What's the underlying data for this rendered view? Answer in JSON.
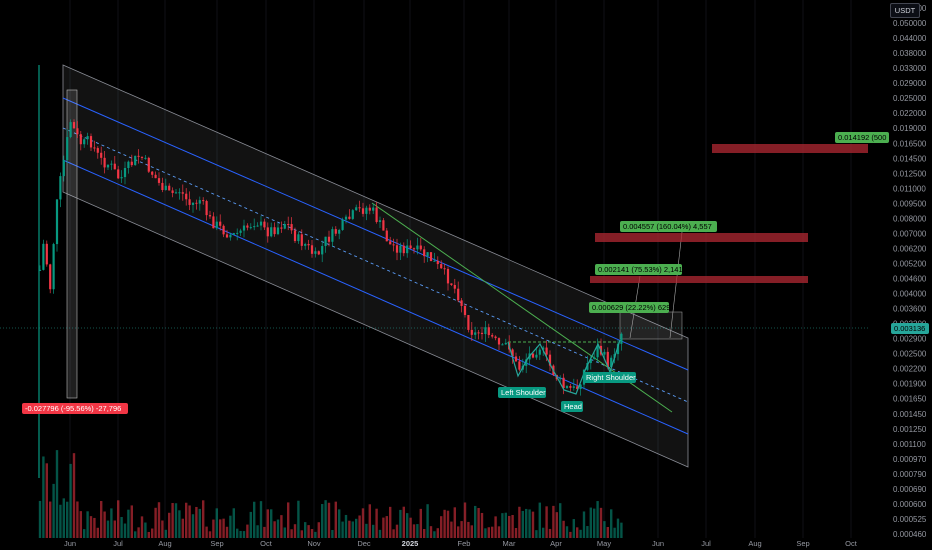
{
  "currency": "USDT",
  "price_label": "0.003136",
  "colors": {
    "up": "#089981",
    "down": "#f23645",
    "up_bright": "#26a69a",
    "channel": "#5b9cf6",
    "trend": "#4caf50",
    "target_box": "#b22833"
  },
  "chart_data": {
    "type": "candlestick",
    "x_labels": [
      "Jun",
      "Jul",
      "Aug",
      "Sep",
      "Oct",
      "Nov",
      "Dec",
      "2025",
      "Feb",
      "Mar",
      "Apr",
      "May",
      "Jun",
      "Jul",
      "Aug",
      "Sep",
      "Oct"
    ],
    "y_ticks": [
      "0.058000",
      "0.050000",
      "0.044000",
      "0.038000",
      "0.033000",
      "0.029000",
      "0.025000",
      "0.022000",
      "0.019000",
      "0.016500",
      "0.014500",
      "0.012500",
      "0.011000",
      "0.009500",
      "0.008000",
      "0.007000",
      "0.006200",
      "0.005200",
      "0.004600",
      "0.004000",
      "0.003600",
      "0.003200",
      "0.002900",
      "0.002500",
      "0.002200",
      "0.001900",
      "0.001650",
      "0.001450",
      "0.001250",
      "0.001100",
      "0.000970",
      "0.000790",
      "0.000690",
      "0.000600",
      "0.000525",
      "0.000460"
    ],
    "scale": "log",
    "current_price": 0.003136,
    "annotations": [
      {
        "text": "Left Shoulder",
        "kind": "pattern"
      },
      {
        "text": "Head",
        "kind": "pattern"
      },
      {
        "text": "Right Shoulder",
        "kind": "pattern"
      }
    ],
    "targets": [
      {
        "text": "0.000629 (22.22%) 629"
      },
      {
        "text": "0.002141 (75.53%) 2,141"
      },
      {
        "text": "0.004557 (160.04%) 4,557"
      },
      {
        "text": "0.014192 (500"
      }
    ],
    "drawdown_label": "-0.027796 (-95.56%) -27,796"
  }
}
